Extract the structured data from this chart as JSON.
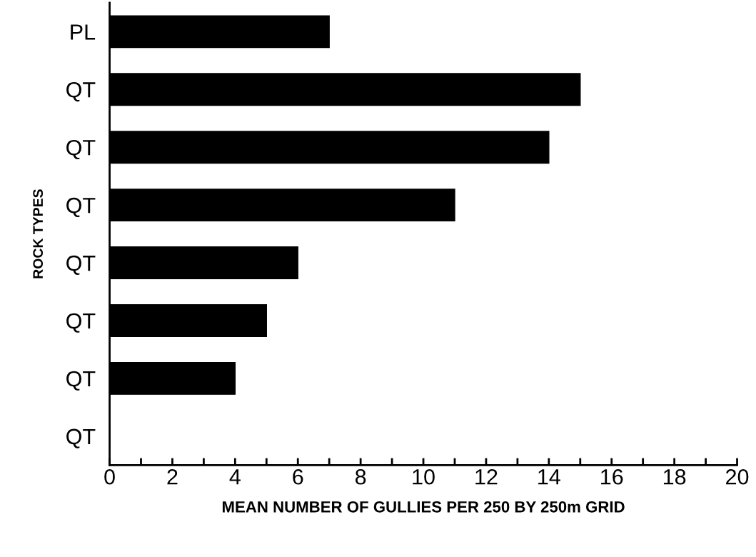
{
  "chart_data": {
    "type": "bar",
    "orientation": "horizontal",
    "xlabel": "MEAN NUMBER OF GULLIES PER 250 BY 250m GRID",
    "ylabel": "ROCK TYPES",
    "categories": [
      "PL",
      "QT",
      "QT",
      "QT",
      "QT",
      "QT",
      "QT",
      "QT"
    ],
    "values": [
      7,
      15,
      14,
      11,
      6,
      5,
      4,
      0
    ],
    "color": "#000000",
    "xlim": [
      0,
      20
    ],
    "xticks": [
      0,
      {
        "value": 1,
        "label": null
      },
      2,
      {
        "value": 3,
        "label": null
      },
      4,
      {
        "value": 5,
        "label": null
      },
      6,
      {
        "value": 7,
        "label": null
      },
      8,
      {
        "value": 9,
        "label": null
      },
      10,
      {
        "value": 11,
        "label": null
      },
      12,
      {
        "value": 13,
        "label": null
      },
      14,
      {
        "value": 15,
        "label": null
      },
      16,
      {
        "value": 17,
        "label": null
      },
      18,
      {
        "value": 19,
        "label": null
      },
      20
    ],
    "grid": false,
    "legend": false
  }
}
